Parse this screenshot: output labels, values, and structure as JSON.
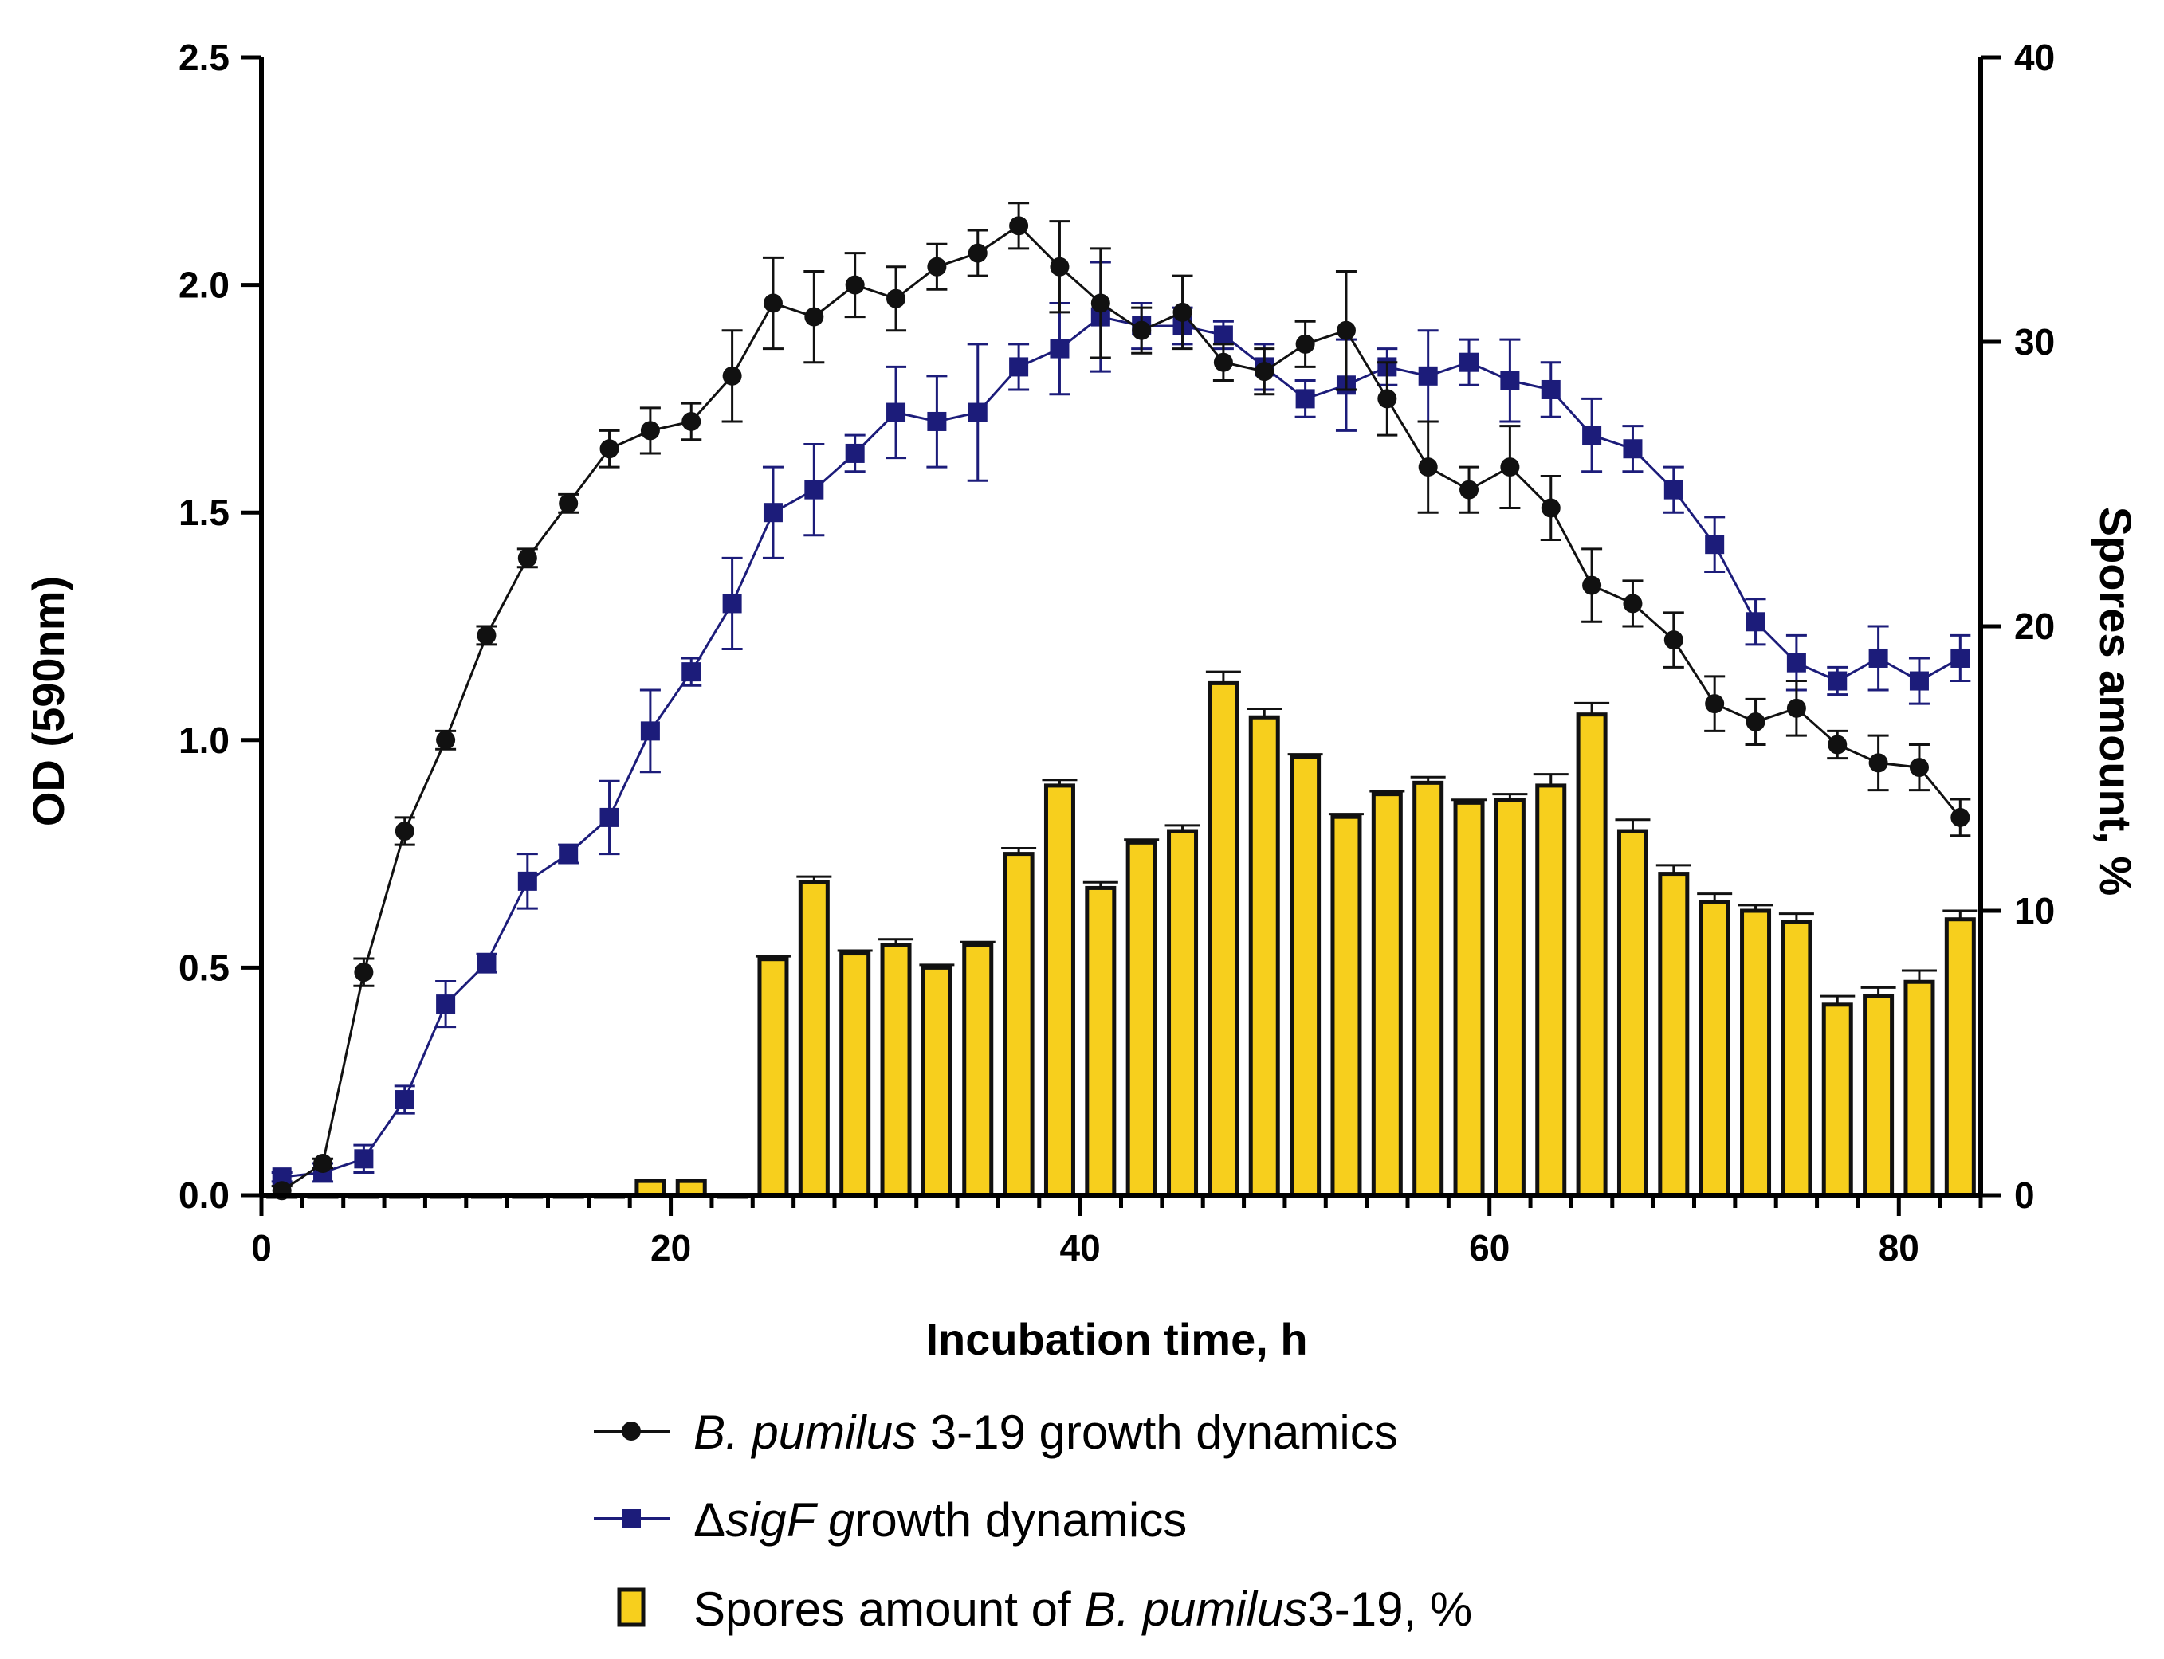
{
  "colors": {
    "growth_wt": "#111111",
    "growth_sigf": "#1c1c7a",
    "spores_fill": "#f7cf1d",
    "spores_edge": "#111111",
    "axis": "#000000"
  },
  "chart_data": {
    "type": "bar+line",
    "xlabel": "Incubation time, h",
    "ylabel_left": "OD (590nm)",
    "ylabel_right": "Spores amount, %",
    "xlim": [
      0,
      84
    ],
    "ylim_left": [
      0,
      2.5
    ],
    "ylim_right": [
      0,
      40
    ],
    "x_ticks": [
      0,
      20,
      40,
      60,
      80
    ],
    "x_tick_labels": [
      "0",
      "20",
      "40",
      "60",
      "80"
    ],
    "y_left_ticks": [
      0,
      0.5,
      1.0,
      1.5,
      2.0,
      2.5
    ],
    "y_left_tick_labels": [
      "0.0",
      "0.5",
      "1.0",
      "1.5",
      "2.0",
      "2.5"
    ],
    "y_right_ticks": [
      0,
      10,
      20,
      30,
      40
    ],
    "y_right_tick_labels": [
      "0",
      "10",
      "20",
      "30",
      "40"
    ],
    "legend_position": "bottom",
    "series": [
      {
        "name": "B. pumilus 3-19 growth dynamics",
        "legend_italic": "B. pumilus",
        "legend_rest": " 3-19 growth dynamics",
        "type": "line",
        "marker": "circle",
        "axis": "left",
        "x": [
          1,
          3,
          5,
          7,
          9,
          11,
          13,
          15,
          17,
          19,
          21,
          23,
          25,
          27,
          29,
          31,
          33,
          35,
          37,
          39,
          41,
          43,
          45,
          47,
          49,
          51,
          53,
          55,
          57,
          59,
          61,
          63,
          65,
          67,
          69,
          71,
          73,
          75,
          77,
          79,
          81,
          83
        ],
        "y": [
          0.01,
          0.07,
          0.49,
          0.8,
          1.0,
          1.23,
          1.4,
          1.52,
          1.64,
          1.68,
          1.7,
          1.8,
          1.96,
          1.93,
          2.0,
          1.97,
          2.04,
          2.07,
          2.13,
          2.04,
          1.96,
          1.9,
          1.94,
          1.83,
          1.81,
          1.87,
          1.9,
          1.75,
          1.6,
          1.55,
          1.6,
          1.51,
          1.34,
          1.3,
          1.22,
          1.08,
          1.04,
          1.07,
          0.99,
          0.95,
          0.94,
          0.83
        ],
        "err": [
          0.01,
          0.01,
          0.03,
          0.03,
          0.02,
          0.02,
          0.02,
          0.02,
          0.04,
          0.05,
          0.04,
          0.1,
          0.1,
          0.1,
          0.07,
          0.07,
          0.05,
          0.05,
          0.05,
          0.1,
          0.12,
          0.05,
          0.08,
          0.04,
          0.05,
          0.05,
          0.13,
          0.08,
          0.1,
          0.05,
          0.09,
          0.07,
          0.08,
          0.05,
          0.06,
          0.06,
          0.05,
          0.06,
          0.03,
          0.06,
          0.05,
          0.04
        ]
      },
      {
        "name": "ΔsigF growth dynamics",
        "legend_prefix": "Δ",
        "legend_italic": "sigF g",
        "legend_rest": "rowth dynamics",
        "type": "line",
        "marker": "square",
        "axis": "left",
        "x": [
          1,
          3,
          5,
          7,
          9,
          11,
          13,
          15,
          17,
          19,
          21,
          23,
          25,
          27,
          29,
          31,
          33,
          35,
          37,
          39,
          41,
          43,
          45,
          47,
          49,
          51,
          53,
          55,
          57,
          59,
          61,
          63,
          65,
          67,
          69,
          71,
          73,
          75,
          77,
          79,
          81,
          83
        ],
        "y": [
          0.04,
          0.05,
          0.08,
          0.21,
          0.42,
          0.51,
          0.69,
          0.75,
          0.83,
          1.02,
          1.15,
          1.3,
          1.5,
          1.55,
          1.63,
          1.72,
          1.7,
          1.72,
          1.82,
          1.86,
          1.93,
          1.91,
          1.91,
          1.89,
          1.82,
          1.75,
          1.78,
          1.82,
          1.8,
          1.83,
          1.79,
          1.77,
          1.67,
          1.64,
          1.55,
          1.43,
          1.26,
          1.17,
          1.13,
          1.18,
          1.13,
          1.18
        ],
        "err": [
          0.01,
          0.02,
          0.03,
          0.03,
          0.05,
          0.02,
          0.06,
          0.02,
          0.08,
          0.09,
          0.03,
          0.1,
          0.1,
          0.1,
          0.04,
          0.1,
          0.1,
          0.15,
          0.05,
          0.1,
          0.12,
          0.05,
          0.04,
          0.03,
          0.05,
          0.04,
          0.1,
          0.04,
          0.1,
          0.05,
          0.09,
          0.06,
          0.08,
          0.05,
          0.05,
          0.06,
          0.05,
          0.06,
          0.03,
          0.07,
          0.05,
          0.05
        ]
      },
      {
        "name": "Spores amount of B. pumilus3-19, %",
        "legend_prefix": "Spores amount of ",
        "legend_italic": "B. pumilus",
        "legend_rest": "3-19, %",
        "type": "bar",
        "axis": "right",
        "x": [
          1,
          3,
          5,
          7,
          9,
          11,
          13,
          15,
          17,
          19,
          21,
          23,
          25,
          27,
          29,
          31,
          33,
          35,
          37,
          39,
          41,
          43,
          45,
          47,
          49,
          51,
          53,
          55,
          57,
          59,
          61,
          63,
          65,
          67,
          69,
          71,
          73,
          75,
          77,
          79,
          81,
          83
        ],
        "y": [
          0,
          0,
          0,
          0,
          0,
          0,
          0,
          0,
          0,
          0.5,
          0.5,
          0,
          8.3,
          11.0,
          8.5,
          8.8,
          8.0,
          8.8,
          12.0,
          14.4,
          10.8,
          12.4,
          12.8,
          18.0,
          16.8,
          15.4,
          13.3,
          14.1,
          14.5,
          13.8,
          13.9,
          14.4,
          16.9,
          12.8,
          11.3,
          10.3,
          10.0,
          9.6,
          6.7,
          7.0,
          7.5,
          9.7
        ],
        "err": [
          0,
          0,
          0,
          0,
          0,
          0,
          0,
          0,
          0,
          0,
          0,
          0,
          0.1,
          0.2,
          0.1,
          0.2,
          0.1,
          0.1,
          0.2,
          0.2,
          0.2,
          0.1,
          0.2,
          0.4,
          0.3,
          0.1,
          0.1,
          0.1,
          0.2,
          0.1,
          0.2,
          0.4,
          0.4,
          0.4,
          0.3,
          0.3,
          0.2,
          0.3,
          0.3,
          0.3,
          0.4,
          0.3
        ]
      }
    ]
  }
}
